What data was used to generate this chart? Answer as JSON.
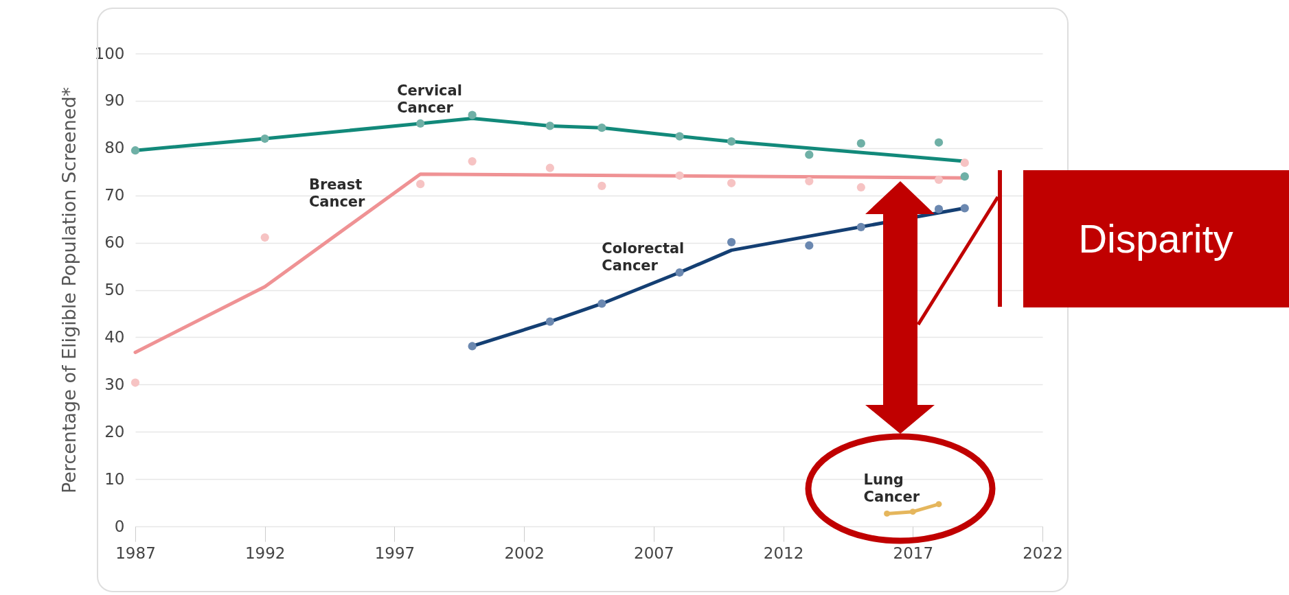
{
  "chart_data": {
    "type": "line",
    "ylabel": "Percentage of Eligible Population Screened*",
    "xlim": [
      1987,
      2022
    ],
    "xticks": [
      1987,
      1992,
      1997,
      2002,
      2007,
      2012,
      2017,
      2022
    ],
    "ylim": [
      0,
      100
    ],
    "yticks": [
      0,
      10,
      20,
      30,
      40,
      50,
      60,
      70,
      80,
      90,
      100
    ],
    "grid": "y",
    "annotations": [
      "Disparity"
    ],
    "series": [
      {
        "type": "scatter",
        "color": "#6fb0a6",
        "x": [
          1987,
          1992,
          1998,
          2000,
          2003,
          2005,
          2008,
          2010,
          2013,
          2015,
          2018,
          2019
        ],
        "values": [
          79.5,
          82,
          85.2,
          87,
          84.7,
          84.3,
          82.5,
          81.4,
          78.6,
          81,
          81.2,
          74
        ]
      },
      {
        "type": "scatter",
        "color": "#f6c3c3",
        "x": [
          1987,
          1992,
          1998,
          2000,
          2003,
          2005,
          2008,
          2010,
          2013,
          2015,
          2018,
          2019
        ],
        "values": [
          30.4,
          61.1,
          72.4,
          77.2,
          75.8,
          72,
          74.2,
          72.6,
          73,
          71.7,
          73.3,
          76.9
        ]
      },
      {
        "type": "scatter",
        "color": "#6b88b0",
        "x": [
          2000,
          2003,
          2005,
          2008,
          2010,
          2013,
          2015,
          2018,
          2019
        ],
        "values": [
          38.1,
          43.3,
          47.1,
          53.7,
          60.1,
          59.4,
          63.3,
          67.1,
          67.3
        ]
      },
      {
        "name": "Cervical Cancer",
        "color": "#12897a",
        "marker": "none",
        "x": [
          1987,
          1992,
          1998,
          2000,
          2003,
          2005,
          2008,
          2010,
          2019
        ],
        "values": [
          79.5,
          82,
          85.2,
          86.3,
          84.7,
          84.3,
          82.5,
          81.4,
          77.2
        ]
      },
      {
        "name": "Breast Cancer",
        "color": "#ef9294",
        "marker": "none",
        "x": [
          1987,
          1992,
          1998,
          2019
        ],
        "values": [
          36.8,
          50.7,
          74.5,
          73.7
        ]
      },
      {
        "name": "Colorectal Cancer",
        "color": "#143f73",
        "marker": "none",
        "x": [
          2000,
          2003,
          2005,
          2008,
          2010,
          2019
        ],
        "values": [
          38.1,
          43.3,
          47.1,
          53.7,
          58.4,
          67.3
        ]
      },
      {
        "name": "Lung Cancer",
        "color": "#e5b65c",
        "marker": "circle",
        "x": [
          2016,
          2017,
          2018
        ],
        "values": [
          2.7,
          3.1,
          4.7
        ]
      }
    ]
  }
}
